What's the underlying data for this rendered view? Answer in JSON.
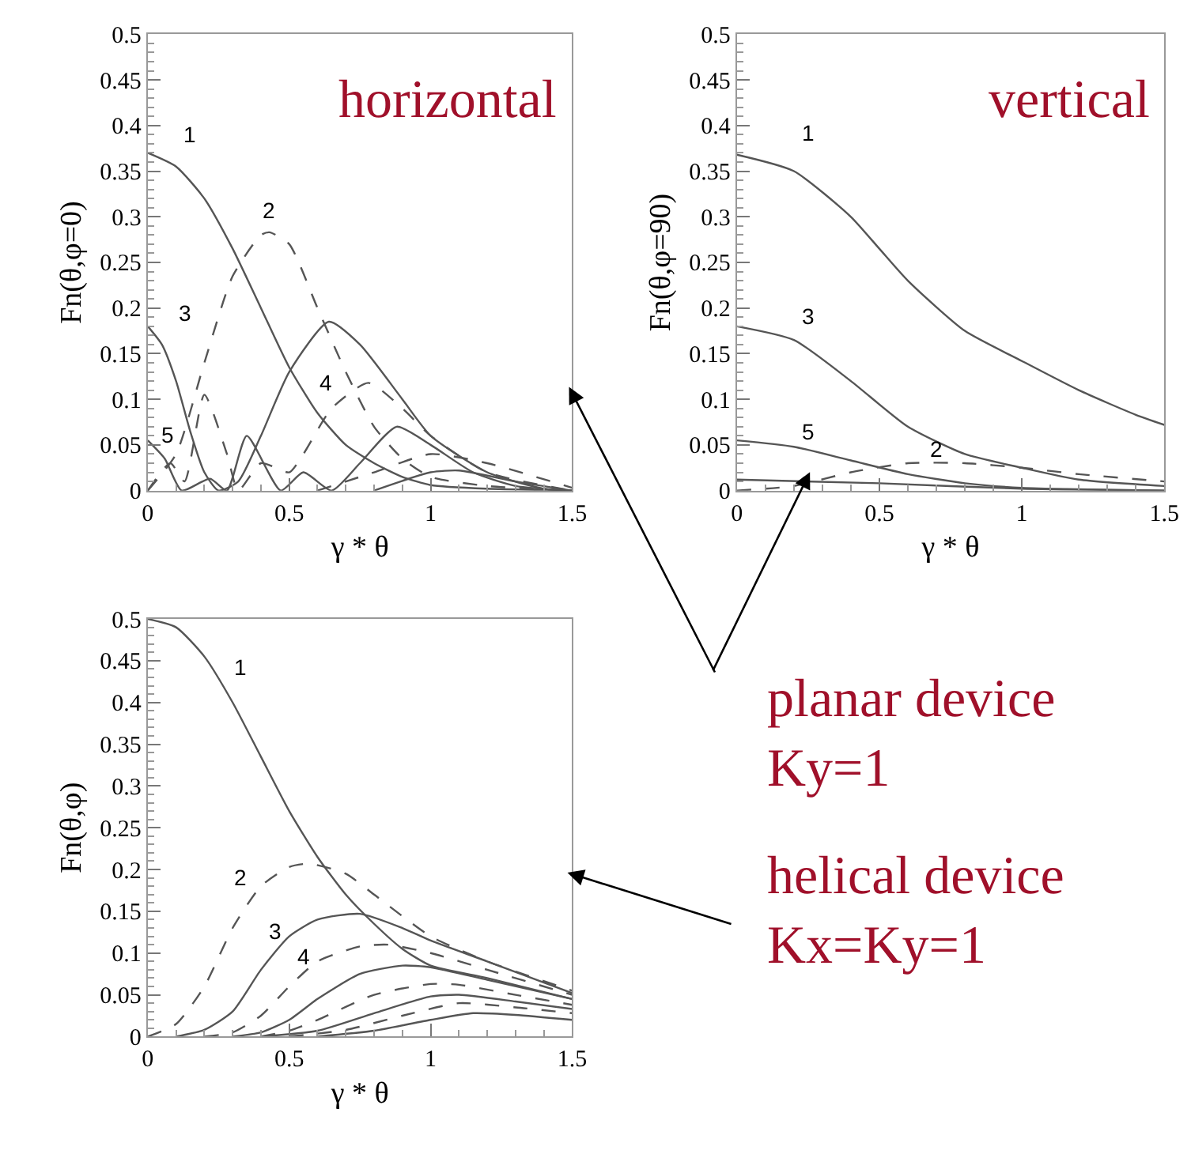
{
  "chart_data": [
    {
      "type": "line",
      "ylabel": "Fn(θ,φ=0)",
      "xlabel": "γ * θ",
      "xlim": [
        0,
        1.5
      ],
      "ylim": [
        0,
        0.5
      ],
      "xticks": [
        0,
        0.5,
        1,
        1.5
      ],
      "yticks": [
        0,
        0.05,
        0.1,
        0.15,
        0.2,
        0.25,
        0.3,
        0.35,
        0.4,
        0.45,
        0.5
      ],
      "grid": false,
      "legend": false,
      "annotations": [
        "horizontal"
      ],
      "series": [
        {
          "name": "1",
          "color": "#555555",
          "line_style": "solid",
          "x": [
            0,
            0.1,
            0.2,
            0.3,
            0.4,
            0.5,
            0.6,
            0.7,
            0.8,
            0.9,
            1.0,
            1.2,
            1.5
          ],
          "values": [
            0.37,
            0.355,
            0.32,
            0.265,
            0.2,
            0.135,
            0.085,
            0.05,
            0.03,
            0.015,
            0.006,
            0.002,
            0
          ]
        },
        {
          "name": "2",
          "color": "#555555",
          "line_style": "dashed",
          "x": [
            0,
            0.1,
            0.2,
            0.3,
            0.4,
            0.43,
            0.5,
            0.6,
            0.7,
            0.8,
            0.9,
            1.0,
            1.2,
            1.5
          ],
          "values": [
            0,
            0.04,
            0.14,
            0.235,
            0.28,
            0.283,
            0.27,
            0.2,
            0.13,
            0.07,
            0.035,
            0.015,
            0.005,
            0
          ]
        },
        {
          "name": "3",
          "color": "#555555",
          "line_style": "solid",
          "x": [
            0,
            0.05,
            0.1,
            0.15,
            0.2,
            0.25,
            0.32,
            0.4,
            0.5,
            0.64,
            0.75,
            0.9,
            1.0,
            1.2,
            1.4,
            1.5
          ],
          "values": [
            0.18,
            0.16,
            0.12,
            0.065,
            0.02,
            0,
            0.01,
            0.06,
            0.13,
            0.185,
            0.16,
            0.1,
            0.06,
            0.02,
            0.002,
            0
          ]
        },
        {
          "name": "4",
          "color": "#555555",
          "line_style": "dashed",
          "x": [
            0,
            0.08,
            0.13,
            0.2,
            0.28,
            0.32,
            0.4,
            0.5,
            0.55,
            0.65,
            0.78,
            0.9,
            1.0,
            1.2,
            1.5
          ],
          "values": [
            0,
            0.03,
            0.01,
            0.105,
            0.04,
            0,
            0.03,
            0.02,
            0.04,
            0.09,
            0.118,
            0.09,
            0.06,
            0.02,
            0
          ]
        },
        {
          "name": "5",
          "color": "#555555",
          "line_style": "solid",
          "x": [
            0,
            0.06,
            0.12,
            0.22,
            0.28,
            0.35,
            0.47,
            0.55,
            0.65,
            0.75,
            0.88,
            1.0,
            1.15,
            1.3,
            1.5
          ],
          "values": [
            0.055,
            0.035,
            0,
            0.013,
            0,
            0.06,
            0,
            0.02,
            0,
            0.03,
            0.07,
            0.05,
            0.02,
            0.005,
            0
          ]
        },
        {
          "color": "#555555",
          "line_style": "dashed",
          "x": [
            0.6,
            0.8,
            1.0,
            1.2,
            1.5
          ],
          "values": [
            0,
            0.02,
            0.04,
            0.03,
            0.003
          ]
        },
        {
          "color": "#555555",
          "line_style": "solid",
          "x": [
            0.8,
            1.0,
            1.1,
            1.3,
            1.5
          ],
          "values": [
            0,
            0.02,
            0.022,
            0.01,
            0
          ]
        }
      ]
    },
    {
      "type": "line",
      "ylabel": "Fn(θ,φ=90)",
      "xlabel": "γ * θ",
      "xlim": [
        0,
        1.5
      ],
      "ylim": [
        0,
        0.5
      ],
      "xticks": [
        0,
        0.5,
        1,
        1.5
      ],
      "yticks": [
        0,
        0.05,
        0.1,
        0.15,
        0.2,
        0.25,
        0.3,
        0.35,
        0.4,
        0.45,
        0.5
      ],
      "grid": false,
      "legend": false,
      "annotations": [
        "vertical"
      ],
      "series": [
        {
          "name": "1",
          "color": "#555555",
          "line_style": "solid",
          "x": [
            0,
            0.2,
            0.4,
            0.5,
            0.6,
            0.8,
            1.0,
            1.2,
            1.4,
            1.5
          ],
          "values": [
            0.368,
            0.35,
            0.3,
            0.265,
            0.23,
            0.175,
            0.142,
            0.11,
            0.083,
            0.072
          ]
        },
        {
          "name": "3",
          "color": "#555555",
          "line_style": "solid",
          "x": [
            0,
            0.2,
            0.4,
            0.6,
            0.8,
            1.0,
            1.2,
            1.5
          ],
          "values": [
            0.18,
            0.165,
            0.12,
            0.07,
            0.04,
            0.025,
            0.012,
            0.005
          ]
        },
        {
          "name": "5",
          "color": "#555555",
          "line_style": "solid",
          "x": [
            0,
            0.2,
            0.4,
            0.6,
            0.8,
            1.0,
            1.5
          ],
          "values": [
            0.055,
            0.048,
            0.033,
            0.018,
            0.008,
            0.003,
            0
          ]
        },
        {
          "name": "2",
          "color": "#555555",
          "line_style": "dashed",
          "x": [
            0,
            0.2,
            0.4,
            0.6,
            0.8,
            1.0,
            1.2,
            1.5
          ],
          "values": [
            0,
            0.005,
            0.02,
            0.03,
            0.03,
            0.025,
            0.018,
            0.01
          ]
        },
        {
          "color": "#555555",
          "line_style": "solid",
          "x": [
            0,
            0.5,
            1.0,
            1.5
          ],
          "values": [
            0.012,
            0.008,
            0.002,
            0
          ]
        }
      ]
    },
    {
      "type": "line",
      "ylabel": "Fn(θ,φ)",
      "xlabel": "γ * θ",
      "xlim": [
        0,
        1.5
      ],
      "ylim": [
        0,
        0.5
      ],
      "xticks": [
        0,
        0.5,
        1,
        1.5
      ],
      "yticks": [
        0,
        0.05,
        0.1,
        0.15,
        0.2,
        0.25,
        0.3,
        0.35,
        0.4,
        0.45,
        0.5
      ],
      "grid": false,
      "legend": false,
      "series": [
        {
          "name": "1",
          "color": "#555555",
          "line_style": "solid",
          "x": [
            0,
            0.1,
            0.2,
            0.3,
            0.4,
            0.5,
            0.6,
            0.7,
            0.8,
            0.9,
            1.0,
            1.2,
            1.5
          ],
          "values": [
            0.5,
            0.49,
            0.455,
            0.4,
            0.335,
            0.27,
            0.215,
            0.17,
            0.135,
            0.105,
            0.085,
            0.07,
            0.045
          ]
        },
        {
          "name": "2",
          "color": "#555555",
          "line_style": "dashed",
          "x": [
            0,
            0.1,
            0.2,
            0.3,
            0.4,
            0.5,
            0.57,
            0.7,
            0.8,
            1.0,
            1.2,
            1.5
          ],
          "values": [
            0,
            0.015,
            0.06,
            0.13,
            0.18,
            0.203,
            0.207,
            0.195,
            0.17,
            0.12,
            0.09,
            0.055
          ]
        },
        {
          "name": "3",
          "color": "#555555",
          "line_style": "solid",
          "x": [
            0.1,
            0.2,
            0.3,
            0.4,
            0.5,
            0.6,
            0.75,
            0.9,
            1.0,
            1.2,
            1.5
          ],
          "values": [
            0,
            0.008,
            0.03,
            0.08,
            0.12,
            0.14,
            0.147,
            0.13,
            0.115,
            0.09,
            0.052
          ]
        },
        {
          "name": "4",
          "color": "#555555",
          "line_style": "dashed",
          "x": [
            0.2,
            0.3,
            0.4,
            0.5,
            0.6,
            0.75,
            0.85,
            1.0,
            1.2,
            1.5
          ],
          "values": [
            0,
            0.005,
            0.025,
            0.06,
            0.09,
            0.108,
            0.11,
            0.1,
            0.08,
            0.05
          ]
        },
        {
          "color": "#555555",
          "line_style": "solid",
          "x": [
            0.3,
            0.4,
            0.5,
            0.6,
            0.75,
            0.9,
            1.0,
            1.2,
            1.5
          ],
          "values": [
            0,
            0.005,
            0.02,
            0.045,
            0.075,
            0.085,
            0.083,
            0.068,
            0.045
          ]
        },
        {
          "color": "#555555",
          "line_style": "dashed",
          "x": [
            0.4,
            0.5,
            0.6,
            0.8,
            1.0,
            1.1,
            1.3,
            1.5
          ],
          "values": [
            0,
            0.007,
            0.02,
            0.05,
            0.063,
            0.062,
            0.05,
            0.038
          ]
        },
        {
          "color": "#555555",
          "line_style": "solid",
          "x": [
            0.4,
            0.6,
            0.8,
            1.0,
            1.1,
            1.3,
            1.5
          ],
          "values": [
            0,
            0.007,
            0.028,
            0.048,
            0.05,
            0.042,
            0.033
          ]
        },
        {
          "color": "#555555",
          "line_style": "dashed",
          "x": [
            0.5,
            0.7,
            0.9,
            1.1,
            1.3,
            1.5
          ],
          "values": [
            0,
            0.008,
            0.025,
            0.04,
            0.035,
            0.028
          ]
        },
        {
          "color": "#555555",
          "line_style": "solid",
          "x": [
            0.6,
            0.8,
            1.0,
            1.15,
            1.3,
            1.5
          ],
          "values": [
            0,
            0.007,
            0.02,
            0.028,
            0.026,
            0.02
          ]
        }
      ]
    },
    {
      "type": "other",
      "annotations": [
        "planar device\nKy=1",
        "helical device\nKx=Ky=1"
      ]
    }
  ]
}
